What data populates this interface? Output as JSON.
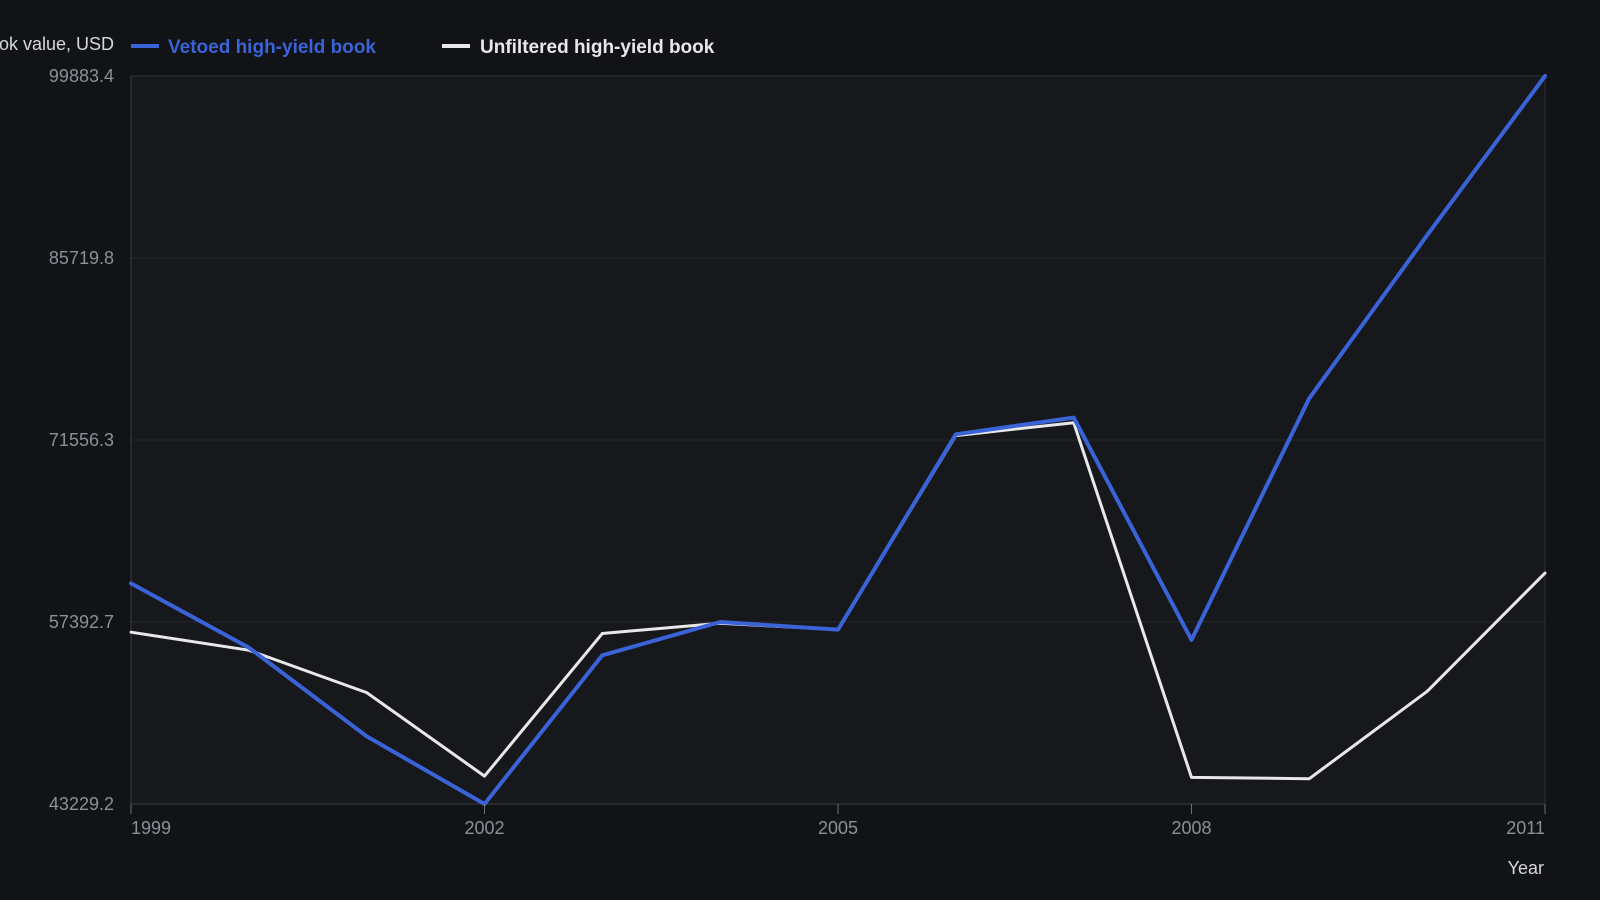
{
  "chart_data": {
    "type": "line",
    "title": "",
    "xlabel": "Year",
    "ylabel": "Book value, USD",
    "ylim": [
      43229.2,
      99883.4
    ],
    "xlim": [
      1999,
      2011
    ],
    "x": [
      1999,
      2000,
      2001,
      2002,
      2003,
      2004,
      2005,
      2006,
      2007,
      2008,
      2009,
      2010,
      2011
    ],
    "x_ticks": [
      "1999",
      "2002",
      "2005",
      "2008",
      "2011"
    ],
    "y_ticks": [
      "43229.2",
      "57392.7",
      "71556.3",
      "85719.8",
      "99883.4"
    ],
    "grid": true,
    "legend_position": "top-left",
    "series": [
      {
        "name": "Vetoed high-yield book",
        "color": "#3a63d8",
        "values": [
          60400,
          55400,
          48500,
          43229.2,
          54800,
          57392.7,
          56800,
          72000,
          73300,
          56000,
          74800,
          87500,
          99883.4
        ]
      },
      {
        "name": "Unfiltered high-yield book",
        "color": "#e8e8ea",
        "values": [
          56600,
          55200,
          51900,
          45400,
          56500,
          57300,
          56800,
          71900,
          72900,
          45300,
          45200,
          52000,
          61200
        ]
      }
    ]
  }
}
